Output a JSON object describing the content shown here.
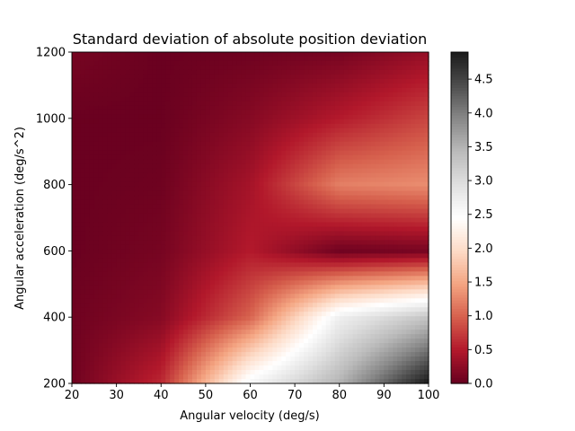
{
  "chart_data": {
    "type": "heatmap",
    "subtype": "filled-contour",
    "title": "Standard deviation of absolute position deviation",
    "xlabel": "Angular velocity (deg/s)",
    "ylabel": "Angular acceleration (deg/s^2)",
    "xlim": [
      20,
      100
    ],
    "ylim": [
      200,
      1200
    ],
    "x_ticks": [
      20,
      30,
      40,
      50,
      60,
      70,
      80,
      90,
      100
    ],
    "y_ticks": [
      200,
      400,
      600,
      800,
      1000,
      1200
    ],
    "colorbar": {
      "colormap": "RdGy",
      "range": [
        0.0,
        4.9
      ],
      "ticks": [
        "0.0",
        "0.5",
        "1.0",
        "1.5",
        "2.0",
        "2.5",
        "3.0",
        "3.5",
        "4.0",
        "4.5"
      ]
    },
    "x": [
      20,
      40,
      60,
      80,
      100
    ],
    "y": [
      200,
      400,
      600,
      800,
      1000,
      1200
    ],
    "z": [
      [
        0.05,
        0.6,
        2.6,
        3.5,
        4.9
      ],
      [
        0.05,
        0.2,
        1.0,
        2.7,
        3.3
      ],
      [
        0.02,
        0.1,
        0.5,
        0.05,
        0.1
      ],
      [
        0.02,
        0.05,
        0.4,
        1.2,
        1.3
      ],
      [
        0.02,
        0.02,
        0.2,
        0.5,
        0.8
      ],
      [
        0.1,
        0.02,
        0.05,
        0.1,
        0.3
      ]
    ],
    "grid": false,
    "legend": "none"
  }
}
